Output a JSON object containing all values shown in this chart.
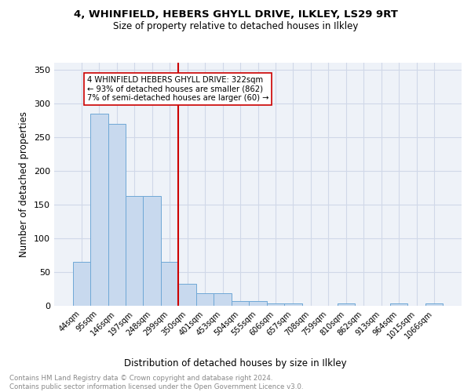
{
  "title1": "4, WHINFIELD, HEBERS GHYLL DRIVE, ILKLEY, LS29 9RT",
  "title2": "Size of property relative to detached houses in Ilkley",
  "xlabel": "Distribution of detached houses by size in Ilkley",
  "ylabel": "Number of detached properties",
  "footer1": "Contains HM Land Registry data © Crown copyright and database right 2024.",
  "footer2": "Contains public sector information licensed under the Open Government Licence v3.0.",
  "bin_labels": [
    "44sqm",
    "95sqm",
    "146sqm",
    "197sqm",
    "248sqm",
    "299sqm",
    "350sqm",
    "401sqm",
    "453sqm",
    "504sqm",
    "555sqm",
    "606sqm",
    "657sqm",
    "708sqm",
    "759sqm",
    "810sqm",
    "862sqm",
    "913sqm",
    "964sqm",
    "1015sqm",
    "1066sqm"
  ],
  "bar_values": [
    65,
    285,
    270,
    163,
    163,
    65,
    33,
    19,
    19,
    7,
    7,
    4,
    4,
    0,
    0,
    3,
    0,
    0,
    3,
    0,
    3
  ],
  "bar_color": "#c8d9ee",
  "bar_edge_color": "#6fa8d6",
  "vline_color": "#cc0000",
  "annotation_text": "4 WHINFIELD HEBERS GHYLL DRIVE: 322sqm\n← 93% of detached houses are smaller (862)\n7% of semi-detached houses are larger (60) →",
  "annotation_box_edgecolor": "#cc0000",
  "ylim": [
    0,
    360
  ],
  "yticks": [
    0,
    50,
    100,
    150,
    200,
    250,
    300,
    350
  ],
  "grid_color": "#d0d8e8",
  "bg_color": "#eef2f8"
}
